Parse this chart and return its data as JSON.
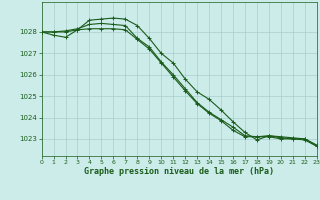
{
  "title": "Graphe pression niveau de la mer (hPa)",
  "background_color": "#ccecea",
  "grid_color": "#a8cece",
  "line_color": "#1a5c1a",
  "x_ticks": [
    0,
    1,
    2,
    3,
    4,
    5,
    6,
    7,
    8,
    9,
    10,
    11,
    12,
    13,
    14,
    15,
    16,
    17,
    18,
    19,
    20,
    21,
    22,
    23
  ],
  "y_ticks": [
    1023,
    1024,
    1025,
    1026,
    1027,
    1028
  ],
  "ylim": [
    1022.2,
    1029.4
  ],
  "xlim": [
    0,
    23
  ],
  "series": [
    [
      1028.0,
      1027.85,
      1027.75,
      1028.1,
      1028.55,
      1028.6,
      1028.65,
      1028.6,
      1028.3,
      1027.7,
      1027.0,
      1026.55,
      1025.8,
      1025.2,
      1024.85,
      1024.35,
      1023.8,
      1023.3,
      1022.95,
      1023.15,
      1023.1,
      1023.05,
      1023.0,
      1022.7
    ],
    [
      1028.0,
      1028.0,
      1028.05,
      1028.15,
      1028.35,
      1028.4,
      1028.35,
      1028.3,
      1027.7,
      1027.3,
      1026.6,
      1026.0,
      1025.35,
      1024.7,
      1024.25,
      1023.9,
      1023.55,
      1023.15,
      1023.1,
      1023.15,
      1023.05,
      1023.0,
      1022.95,
      1022.65
    ],
    [
      1028.0,
      1028.0,
      1028.0,
      1028.1,
      1028.15,
      1028.15,
      1028.15,
      1028.1,
      1027.65,
      1027.2,
      1026.55,
      1025.9,
      1025.25,
      1024.65,
      1024.2,
      1023.85,
      1023.4,
      1023.1,
      1023.1,
      1023.1,
      1023.0,
      1023.0,
      1023.0,
      1022.7
    ]
  ]
}
